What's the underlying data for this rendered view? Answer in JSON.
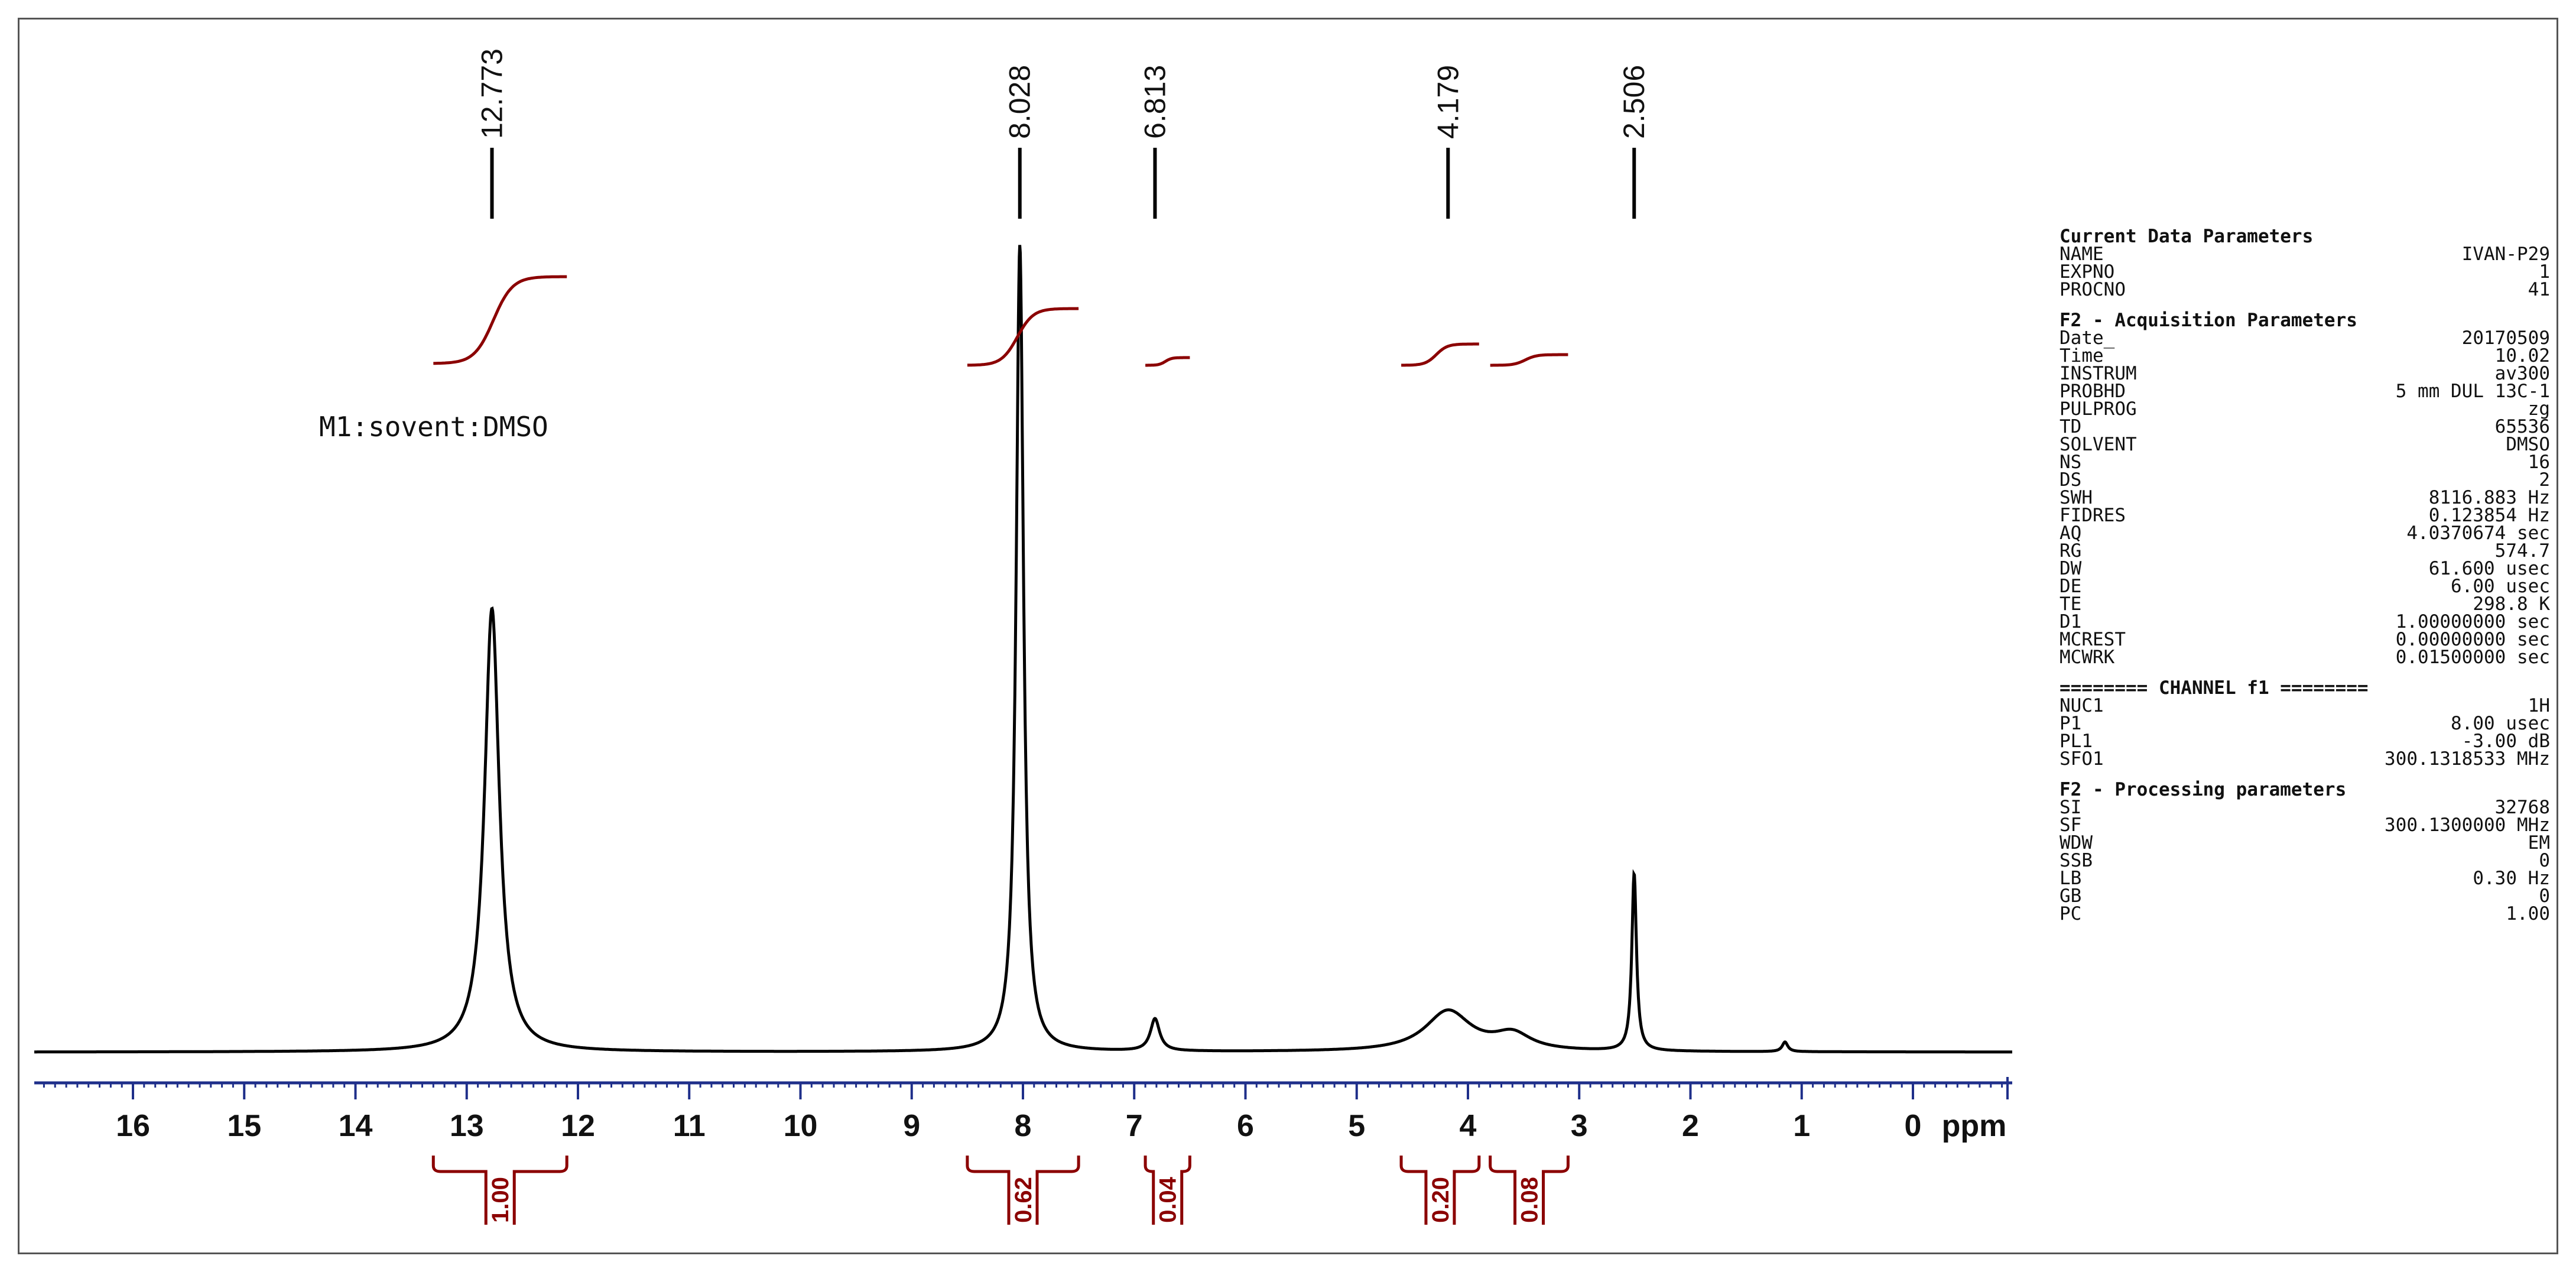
{
  "chart_data": {
    "type": "line",
    "title": "",
    "xlabel": "ppm",
    "xlim": [
      17.0,
      -1.0
    ],
    "x_ticks": [
      "16",
      "15",
      "14",
      "13",
      "12",
      "11",
      "10",
      "9",
      "8",
      "7",
      "6",
      "5",
      "4",
      "3",
      "2",
      "1",
      "0"
    ],
    "series": [
      {
        "peaks": [
          {
            "ppm": 12.773,
            "relative_height": 0.55,
            "width": 0.08
          },
          {
            "ppm": 8.028,
            "relative_height": 1.0,
            "width": 0.04
          },
          {
            "ppm": 6.813,
            "relative_height": 0.04,
            "width": 0.05
          },
          {
            "ppm": 4.179,
            "relative_height": 0.05,
            "width": 0.25
          },
          {
            "ppm": 3.6,
            "relative_height": 0.02,
            "width": 0.2
          },
          {
            "ppm": 2.506,
            "relative_height": 0.22,
            "width": 0.025
          },
          {
            "ppm": 1.15,
            "relative_height": 0.012,
            "width": 0.03
          }
        ]
      }
    ],
    "peak_labels": [
      "12.773",
      "8.028",
      "6.813",
      "4.179",
      "2.506"
    ],
    "integrals": [
      {
        "value": "1.00",
        "from": 13.3,
        "to": 12.1
      },
      {
        "value": "0.62",
        "from": 8.5,
        "to": 7.5
      },
      {
        "value": "0.04",
        "from": 6.9,
        "to": 6.5
      },
      {
        "value": "0.20",
        "from": 4.6,
        "to": 3.9
      },
      {
        "value": "0.08",
        "from": 3.8,
        "to": 3.1
      }
    ],
    "annotation": "M1:sovent:DMSO",
    "colors": {
      "spectrum": "#000000",
      "axis": "#1f2f8a",
      "integral": "#8b0000"
    }
  },
  "parameters": [
    {
      "header": "Current Data Parameters",
      "rows": [
        [
          "NAME",
          "IVAN-P29"
        ],
        [
          "EXPNO",
          "1"
        ],
        [
          "PROCNO",
          "41"
        ]
      ]
    },
    {
      "header": "F2 - Acquisition Parameters",
      "rows": [
        [
          "Date_",
          "20170509"
        ],
        [
          "Time",
          "10.02"
        ],
        [
          "INSTRUM",
          "av300"
        ],
        [
          "PROBHD",
          "5 mm DUL 13C-1"
        ],
        [
          "PULPROG",
          "zg"
        ],
        [
          "TD",
          "65536"
        ],
        [
          "SOLVENT",
          "DMSO"
        ],
        [
          "NS",
          "16"
        ],
        [
          "DS",
          "2"
        ],
        [
          "SWH",
          "8116.883 Hz"
        ],
        [
          "FIDRES",
          "0.123854 Hz"
        ],
        [
          "AQ",
          "4.0370674 sec"
        ],
        [
          "RG",
          "574.7"
        ],
        [
          "DW",
          "61.600 usec"
        ],
        [
          "DE",
          "6.00 usec"
        ],
        [
          "TE",
          "298.8 K"
        ],
        [
          "D1",
          "1.00000000 sec"
        ],
        [
          "MCREST",
          "0.00000000 sec"
        ],
        [
          "MCWRK",
          "0.01500000 sec"
        ]
      ]
    },
    {
      "header": "======== CHANNEL f1 ========",
      "rows": [
        [
          "NUC1",
          "1H"
        ],
        [
          "P1",
          "8.00 usec"
        ],
        [
          "PL1",
          "-3.00 dB"
        ],
        [
          "SFO1",
          "300.1318533 MHz"
        ]
      ]
    },
    {
      "header": "F2 - Processing parameters",
      "rows": [
        [
          "SI",
          "32768"
        ],
        [
          "SF",
          "300.1300000 MHz"
        ],
        [
          "WDW",
          "EM"
        ],
        [
          "SSB",
          "0"
        ],
        [
          "LB",
          "0.30 Hz"
        ],
        [
          "GB",
          "0"
        ],
        [
          "PC",
          "1.00"
        ]
      ]
    }
  ]
}
